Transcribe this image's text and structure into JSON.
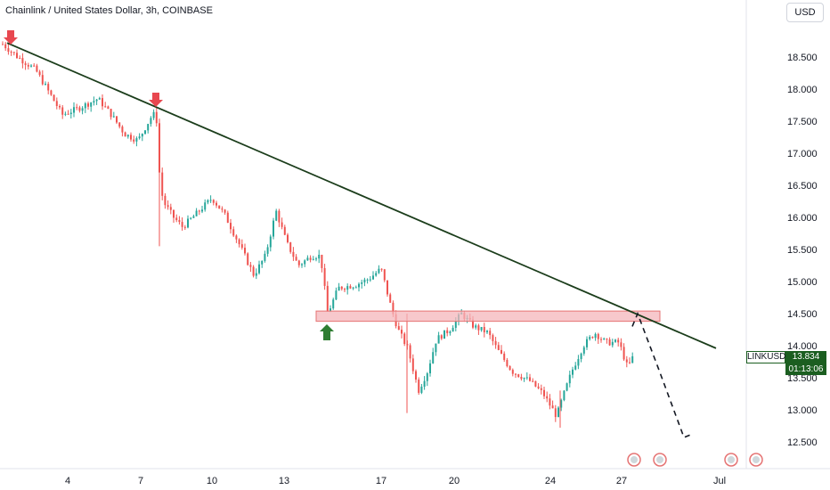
{
  "title": "Chainlink / United States Dollar, 3h, COINBASE",
  "currency_button": "USD",
  "price_tag": {
    "symbol": "LINKUSD",
    "price": "13.834",
    "countdown": "01:13:06",
    "color": "#1b5e20"
  },
  "colors": {
    "up": "#26a69a",
    "down": "#ef5350",
    "trendline": "#1b3d1b",
    "zone_fill": "#f4b6bb",
    "zone_border": "#e57373",
    "arrow_down": "#e8474f",
    "arrow_up": "#2e7d32"
  },
  "chart_data": {
    "type": "candlestick",
    "y_ticks": [
      "18.500",
      "18.000",
      "17.500",
      "17.000",
      "16.500",
      "16.000",
      "15.500",
      "15.000",
      "14.500",
      "14.000",
      "13.500",
      "13.000",
      "12.500"
    ],
    "x_ticks": [
      "4",
      "7",
      "10",
      "13",
      "17",
      "20",
      "24",
      "27",
      "Jul"
    ],
    "ylim": [
      12.5,
      18.5
    ],
    "series": [
      {
        "values": [
          {
            "x": "Jun 1",
            "close": 18.7
          },
          {
            "x": "Jun 2",
            "close": 18.35
          },
          {
            "x": "Jun 3",
            "close": 17.9
          },
          {
            "x": "Jun 4",
            "close": 17.6
          },
          {
            "x": "Jun 5",
            "close": 17.85
          },
          {
            "x": "Jun 6",
            "close": 17.55
          },
          {
            "x": "Jun 7",
            "close": 17.3
          },
          {
            "x": "Jun 8",
            "close": 17.65
          },
          {
            "x": "Jun 8",
            "close": 16.3
          },
          {
            "x": "Jun 9",
            "close": 15.8
          },
          {
            "x": "Jun 10",
            "close": 16.3
          },
          {
            "x": "Jun 11",
            "close": 15.95
          },
          {
            "x": "Jun 12",
            "close": 15.1
          },
          {
            "x": "Jun 13",
            "close": 16.05
          },
          {
            "x": "Jun 14",
            "close": 15.5
          },
          {
            "x": "Jun 15",
            "close": 14.45
          },
          {
            "x": "Jun 16",
            "close": 14.95
          },
          {
            "x": "Jun 17",
            "close": 15.05
          },
          {
            "x": "Jun 18",
            "close": 13.65
          },
          {
            "x": "Jun 19",
            "close": 14.1
          },
          {
            "x": "Jun 20",
            "close": 14.3
          },
          {
            "x": "Jun 21",
            "close": 14.0
          },
          {
            "x": "Jun 22",
            "close": 13.6
          },
          {
            "x": "Jun 23",
            "close": 13.45
          },
          {
            "x": "Jun 24",
            "close": 13.05
          },
          {
            "x": "Jun 25",
            "close": 13.8
          },
          {
            "x": "Jun 26",
            "close": 14.1
          },
          {
            "x": "Jun 27",
            "close": 13.834
          }
        ]
      }
    ],
    "annotations": {
      "trendline": "descending resistance",
      "zone": [
        14.38,
        14.54
      ],
      "projection": [
        14.5,
        13.5,
        12.5,
        12.6
      ]
    }
  }
}
